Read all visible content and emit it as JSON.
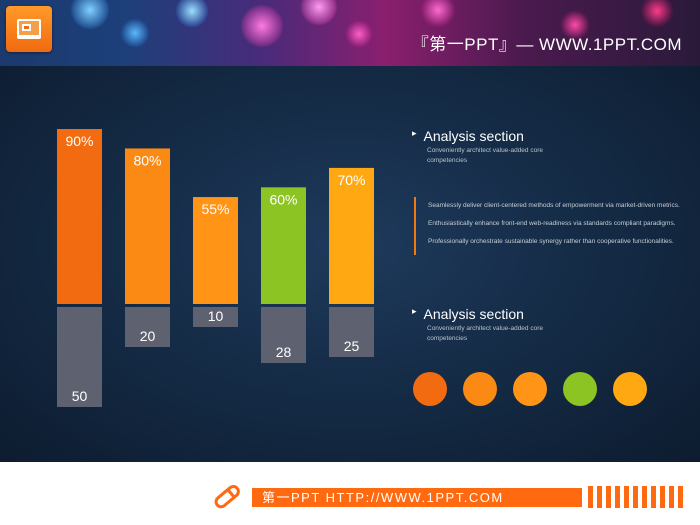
{
  "header": {
    "title": "『第一PPT』— WWW.1PPT.COM",
    "logo_icon": "powerpoint-icon"
  },
  "chart_data": {
    "type": "bar",
    "series": [
      {
        "values": [
          90,
          80,
          55,
          60,
          70
        ],
        "labels": [
          "90%",
          "80%",
          "55%",
          "60%",
          "70%"
        ]
      },
      {
        "values": [
          50,
          20,
          10,
          28,
          25
        ]
      }
    ],
    "colors": [
      "#f36b10",
      "#fa8a14",
      "#ff9416",
      "#8cc423",
      "#ffa812"
    ],
    "negative_color": "#5e6170"
  },
  "sections": [
    {
      "title": "Analysis section",
      "sub_line1": "Conveniently  architect  value-added  core",
      "sub_line2": "competencies"
    },
    {
      "title": "Analysis section",
      "sub_line1": "Conveniently  architect  value-added  core",
      "sub_line2": "competencies"
    }
  ],
  "body": {
    "line1": "Seamlessly  deliver  client-centered  methods  of  empowerment  via  market-driven  metrics.",
    "line2": "Enthusiastically  enhance  front-end  web-readiness  via standards  compliant  paradigms.",
    "line3": "Professionally  orchestrate  sustainable  synergy  rather  than  cooperative  functionalities."
  },
  "circles": [
    "#f36b10",
    "#fa8a14",
    "#ff9416",
    "#8cc423",
    "#ffa812"
  ],
  "footer": {
    "text": "第一PPT HTTP://WWW.1PPT.COM",
    "icon": "pencil-icon"
  }
}
